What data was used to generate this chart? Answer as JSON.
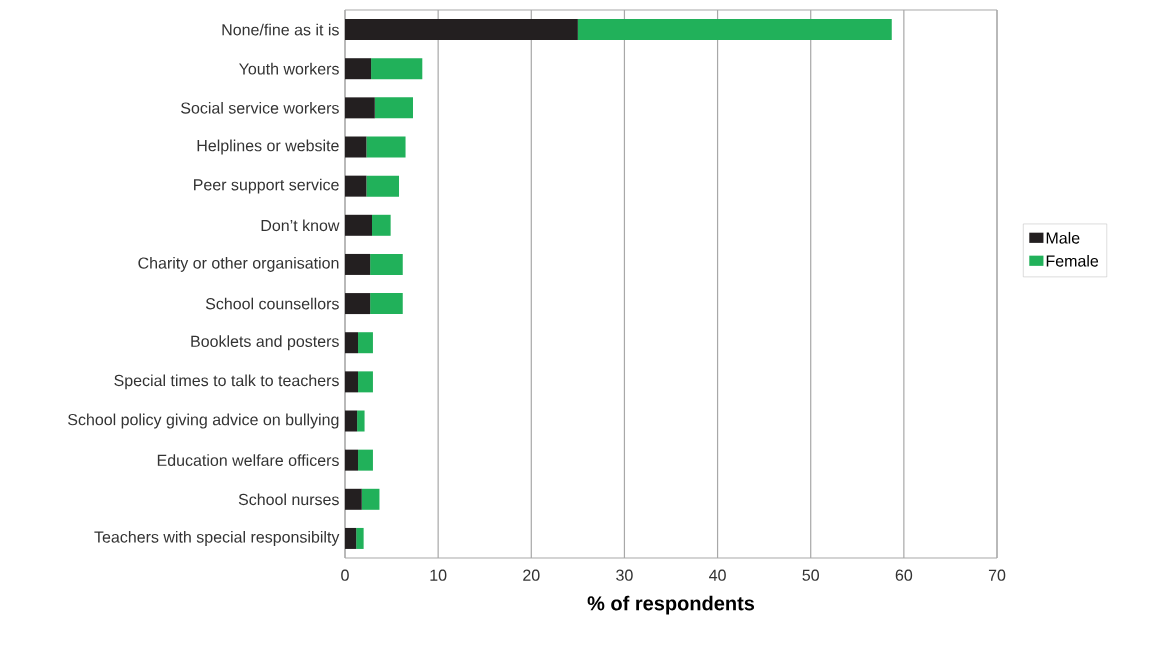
{
  "chart_data": {
    "type": "bar",
    "orientation": "horizontal",
    "stacked": true,
    "xlabel": "% of respondents",
    "categories": [
      "None/fine as it is",
      "Youth workers",
      "Social service workers",
      "Helplines or website",
      "Peer support service",
      "Don’t know",
      "Charity or other organisation",
      "School counsellors",
      "Booklets and posters",
      "Special times to talk to teachers",
      "School policy giving advice on bullying",
      "Education welfare officers",
      "School nurses",
      "Teachers with special responsibilty"
    ],
    "series": [
      {
        "name": "Male",
        "color": "#231f20",
        "values": [
          25.0,
          2.8,
          3.2,
          2.3,
          2.3,
          2.9,
          2.7,
          2.7,
          1.4,
          1.4,
          1.3,
          1.4,
          1.8,
          1.2
        ]
      },
      {
        "name": "Female",
        "color": "#21b15a",
        "values": [
          33.7,
          5.5,
          4.1,
          4.2,
          3.5,
          2.0,
          3.5,
          3.5,
          1.6,
          1.6,
          0.8,
          1.6,
          1.9,
          0.8
        ]
      }
    ],
    "xlim": [
      0,
      70
    ],
    "xticks": [
      0,
      10,
      20,
      30,
      40,
      50,
      60,
      70
    ],
    "grid": "x",
    "legend": "right"
  }
}
